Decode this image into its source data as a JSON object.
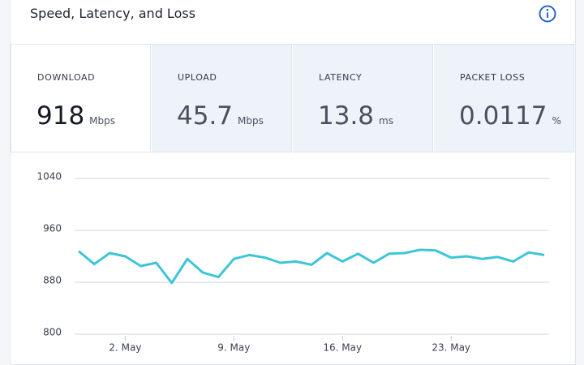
{
  "header": {
    "title": "Speed, Latency, and Loss"
  },
  "metrics": [
    {
      "label": "DOWNLOAD",
      "value": "918",
      "unit": "Mbps"
    },
    {
      "label": "UPLOAD",
      "value": "45.7",
      "unit": "Mbps"
    },
    {
      "label": "LATENCY",
      "value": "13.8",
      "unit": "ms"
    },
    {
      "label": "PACKET LOSS",
      "value": "0.0117",
      "unit": "%"
    }
  ],
  "chart_data": {
    "type": "line",
    "color": "#3cc6d8",
    "grid": true,
    "categories": [
      null,
      null,
      null,
      "2. May",
      null,
      null,
      null,
      null,
      null,
      null,
      "9. May",
      null,
      null,
      null,
      null,
      null,
      null,
      "16. May",
      null,
      null,
      null,
      null,
      null,
      null,
      "23. May",
      null,
      null,
      null,
      null,
      null,
      null
    ],
    "values": [
      928,
      908,
      925,
      920,
      905,
      910,
      879,
      916,
      895,
      888,
      916,
      922,
      918,
      910,
      912,
      907,
      925,
      912,
      924,
      910,
      924,
      925,
      930,
      929,
      918,
      920,
      916,
      919,
      912,
      926,
      922
    ],
    "ylim": [
      800,
      1040
    ],
    "yticks": [
      800,
      880,
      960,
      1040
    ]
  }
}
